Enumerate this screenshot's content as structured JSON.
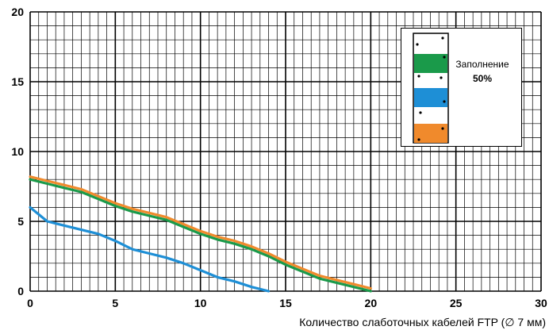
{
  "chart_data": {
    "type": "line",
    "xlabel": "Количество слаботочных кабелей FTP  (∅ 7 мм)",
    "ylabel": "",
    "xlim": [
      0,
      30
    ],
    "ylim": [
      0,
      20
    ],
    "x_ticks": [
      "0",
      "5",
      "10",
      "15",
      "20",
      "25",
      "30"
    ],
    "y_ticks": [
      "0",
      "5",
      "10",
      "15",
      "20"
    ],
    "grid": true,
    "legend": {
      "placement": "top-right",
      "line1": "Заполнение",
      "line2": "50%",
      "stripe_colors": [
        "#1a9a4a",
        "#1e8fd6",
        "#f08a2c"
      ]
    },
    "series": [
      {
        "color": "#f08a2c",
        "x": [
          0,
          1,
          2,
          3,
          4,
          5,
          6,
          7,
          8,
          9,
          10,
          11,
          12,
          13,
          14,
          15,
          16,
          17,
          18,
          19,
          20
        ],
        "y": [
          8.2,
          7.9,
          7.6,
          7.3,
          6.8,
          6.3,
          5.9,
          5.6,
          5.3,
          4.8,
          4.3,
          3.9,
          3.6,
          3.2,
          2.7,
          2.1,
          1.6,
          1.1,
          0.8,
          0.5,
          0.2
        ]
      },
      {
        "color": "#1a9a4a",
        "x": [
          0,
          1,
          2,
          3,
          4,
          5,
          6,
          7,
          8,
          9,
          10,
          11,
          12,
          13,
          14,
          15,
          16,
          17,
          18,
          19,
          20
        ],
        "y": [
          8.0,
          7.7,
          7.4,
          7.1,
          6.6,
          6.1,
          5.7,
          5.4,
          5.1,
          4.6,
          4.1,
          3.7,
          3.4,
          3.0,
          2.5,
          1.9,
          1.4,
          0.9,
          0.6,
          0.3,
          0.0
        ]
      },
      {
        "color": "#1e8fd6",
        "x": [
          0,
          1,
          2,
          3,
          4,
          5,
          6,
          7,
          8,
          9,
          10,
          11,
          12,
          13,
          14
        ],
        "y": [
          6.0,
          5.0,
          4.7,
          4.4,
          4.1,
          3.6,
          3.0,
          2.7,
          2.4,
          2.0,
          1.5,
          1.0,
          0.7,
          0.3,
          0.0
        ]
      }
    ]
  }
}
